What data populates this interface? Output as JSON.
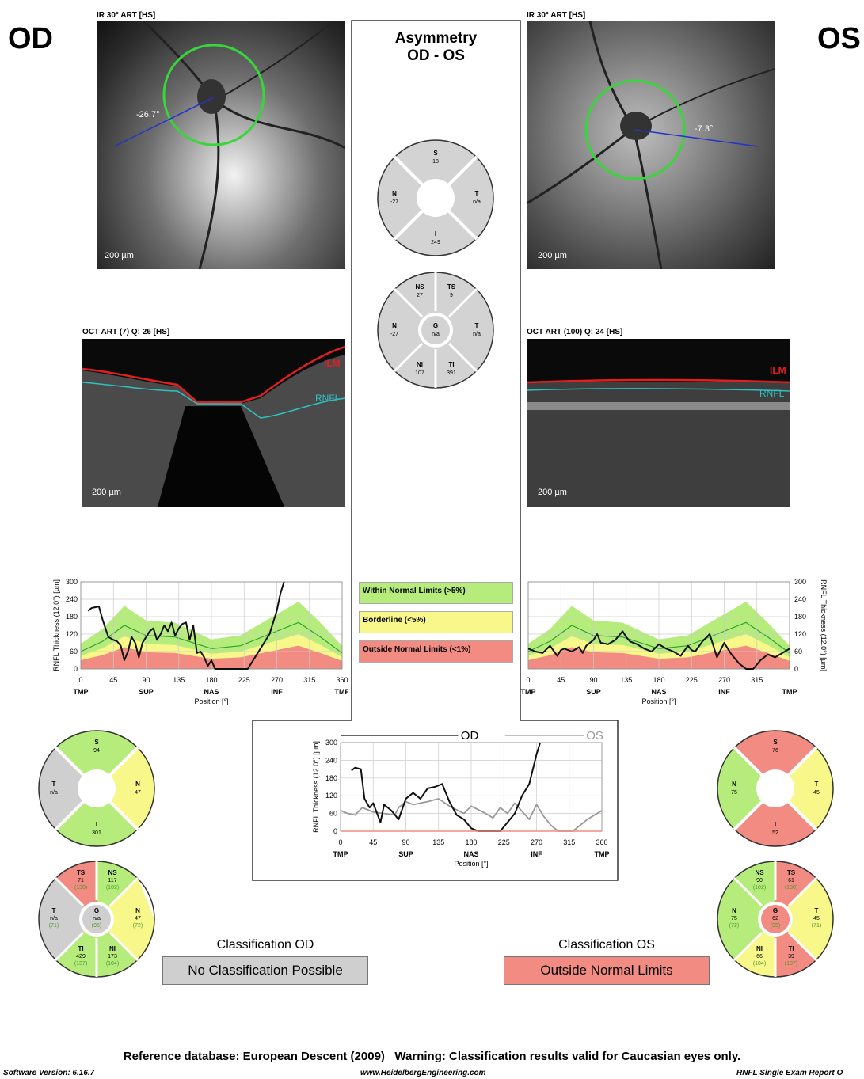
{
  "eyes": {
    "od": "OD",
    "os": "OS"
  },
  "ir": {
    "od_title": "IR 30° ART [HS]",
    "os_title": "IR 30° ART [HS]",
    "od_angle": "-26.7°",
    "os_angle": "-7.3°",
    "scale": "200 µm"
  },
  "oct": {
    "od_title": "OCT ART (7) Q: 26 [HS]",
    "os_title": "OCT ART (100) Q: 24 [HS]",
    "ilm": "ILM",
    "rnfl": "RNFL",
    "scale": "200 µm"
  },
  "asymmetry": {
    "title1": "Asymmetry",
    "title2": "OD - OS",
    "quad": {
      "S": "18",
      "N": "-27",
      "T": "n/a",
      "I": "249"
    },
    "sect": {
      "NS": "27",
      "TS": "9",
      "N": "-27",
      "G": "n/a",
      "T": "n/a",
      "NI": "107",
      "TI": "391"
    }
  },
  "legend": {
    "wnl": "Within Normal Limits (>5%)",
    "bl": "Borderline (<5%)",
    "onl": "Outside Normal Limits (<1%)"
  },
  "chart_labels": {
    "ylabel": "RNFL Thickness (12.0°) [µm]",
    "xlabel": "Position [°]",
    "sectors": [
      "TMP",
      "SUP",
      "NAS",
      "INF",
      "TMP"
    ],
    "od_legend": "OD",
    "os_legend": "OS"
  },
  "chart_data": [
    {
      "type": "line",
      "name": "OD profile",
      "ylabel": "RNFL Thickness (12.0°) [µm]",
      "xlabel": "Position [°]",
      "xlim": [
        0,
        360
      ],
      "ylim": [
        0,
        300
      ],
      "xticks": [
        0,
        45,
        90,
        135,
        180,
        225,
        270,
        315,
        360
      ],
      "yticks": [
        0,
        60,
        120,
        180,
        240,
        300
      ],
      "normal_mean": [
        [
          0,
          60
        ],
        [
          30,
          95
        ],
        [
          60,
          150
        ],
        [
          90,
          115
        ],
        [
          130,
          110
        ],
        [
          180,
          70
        ],
        [
          220,
          80
        ],
        [
          260,
          120
        ],
        [
          300,
          160
        ],
        [
          330,
          110
        ],
        [
          360,
          55
        ]
      ],
      "x": [
        10,
        15,
        25,
        30,
        38,
        45,
        50,
        55,
        60,
        65,
        70,
        75,
        80,
        85,
        90,
        95,
        100,
        105,
        110,
        115,
        120,
        125,
        130,
        135,
        140,
        145,
        150,
        155,
        160,
        165,
        170,
        175,
        180,
        185,
        200,
        215,
        230,
        240,
        250,
        260,
        265,
        270,
        275,
        280
      ],
      "y": [
        200,
        210,
        215,
        170,
        110,
        100,
        95,
        80,
        30,
        60,
        110,
        90,
        40,
        90,
        110,
        130,
        140,
        100,
        120,
        150,
        130,
        160,
        115,
        140,
        155,
        160,
        100,
        150,
        55,
        60,
        40,
        10,
        30,
        0,
        0,
        0,
        0,
        40,
        80,
        120,
        160,
        200,
        260,
        300
      ]
    },
    {
      "type": "line",
      "name": "OS profile",
      "ylabel": "RNFL Thickness (12.0°) [µm]",
      "xlabel": "Position [°]",
      "xlim": [
        0,
        360
      ],
      "ylim": [
        0,
        300
      ],
      "xticks": [
        0,
        45,
        90,
        135,
        180,
        225,
        270,
        315
      ],
      "yticks": [
        0,
        60,
        120,
        180,
        240,
        300
      ],
      "x": [
        0,
        10,
        20,
        30,
        40,
        45,
        50,
        60,
        70,
        75,
        80,
        90,
        95,
        100,
        110,
        120,
        130,
        135,
        140,
        150,
        160,
        170,
        180,
        190,
        200,
        210,
        220,
        225,
        230,
        240,
        250,
        260,
        270,
        280,
        290,
        300,
        310,
        320,
        330,
        340,
        350,
        360
      ],
      "y": [
        70,
        60,
        55,
        80,
        45,
        65,
        70,
        60,
        75,
        55,
        80,
        100,
        120,
        90,
        85,
        100,
        130,
        110,
        95,
        85,
        70,
        60,
        85,
        70,
        60,
        45,
        80,
        65,
        60,
        95,
        120,
        40,
        90,
        50,
        20,
        0,
        0,
        30,
        50,
        40,
        55,
        70
      ]
    },
    {
      "type": "line",
      "name": "OD vs OS",
      "xlim": [
        0,
        360
      ],
      "ylim": [
        0,
        300
      ],
      "ylabel": "RNFL Thickness (12.0°) [µm]",
      "xlabel": "Position [°]",
      "xticks": [
        0,
        45,
        90,
        135,
        180,
        225,
        270,
        315,
        360
      ],
      "yticks": [
        0,
        60,
        120,
        180,
        240,
        300
      ],
      "series": [
        {
          "name": "OD",
          "x": [
            15,
            20,
            28,
            33,
            40,
            45,
            55,
            60,
            70,
            80,
            90,
            100,
            110,
            120,
            130,
            140,
            150,
            160,
            170,
            180,
            190,
            200,
            220,
            240,
            250,
            260,
            270,
            275
          ],
          "y": [
            205,
            215,
            210,
            110,
            80,
            95,
            30,
            90,
            70,
            40,
            110,
            130,
            110,
            145,
            150,
            160,
            100,
            55,
            40,
            10,
            0,
            0,
            0,
            60,
            120,
            160,
            260,
            300
          ]
        },
        {
          "name": "OS",
          "x": [
            0,
            10,
            20,
            30,
            45,
            60,
            75,
            80,
            90,
            100,
            120,
            135,
            150,
            170,
            180,
            200,
            210,
            220,
            230,
            240,
            260,
            270,
            280,
            290,
            300,
            310,
            320,
            340,
            360
          ],
          "y": [
            70,
            60,
            55,
            80,
            65,
            60,
            55,
            80,
            100,
            90,
            100,
            110,
            85,
            60,
            85,
            60,
            45,
            80,
            60,
            95,
            40,
            90,
            50,
            20,
            0,
            0,
            0,
            40,
            70
          ]
        }
      ]
    }
  ],
  "od_quad": {
    "S": "94",
    "T": "n/a",
    "N": "47",
    "I": "301"
  },
  "od_sect": {
    "TS": "71",
    "TS_ref": "(130)",
    "NS": "117",
    "NS_ref": "(102)",
    "T": "n/a",
    "T_ref": "(71)",
    "G": "n/a",
    "G_ref": "(95)",
    "N": "47",
    "N_ref": "(72)",
    "TI": "429",
    "TI_ref": "(137)",
    "NI": "173",
    "NI_ref": "(104)"
  },
  "os_quad": {
    "S": "76",
    "N": "75",
    "T": "45",
    "I": "52"
  },
  "os_sect": {
    "NS": "90",
    "NS_ref": "(102)",
    "TS": "61",
    "TS_ref": "(130)",
    "N": "75",
    "N_ref": "(72)",
    "G": "62",
    "G_ref": "(95)",
    "T": "45",
    "T_ref": "(71)",
    "NI": "66",
    "NI_ref": "(104)",
    "TI": "39",
    "TI_ref": "(137)"
  },
  "classification": {
    "od_title": "Classification OD",
    "od_value": "No Classification Possible",
    "os_title": "Classification OS",
    "os_value": "Outside Normal Limits"
  },
  "footer": {
    "reference": "Reference database: European Descent (2009)   Warning: Classification results valid for Caucasian eyes only.",
    "version": "Software Version: 6.16.7",
    "website": "www.HeidelbergEngineering.com",
    "report": "RNFL Single Exam Report O"
  },
  "colors": {
    "green": "#b5ec7c",
    "yellow": "#f7f78a",
    "red": "#f28b82",
    "gray": "#cfcfcf"
  }
}
